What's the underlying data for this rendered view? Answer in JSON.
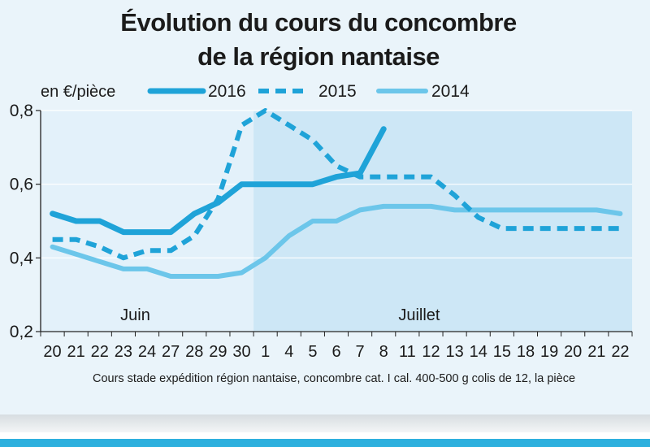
{
  "header": {
    "title_line1": "Évolution du cours du concombre",
    "title_line2": "de la région nantaise"
  },
  "colors": {
    "series_2016": "#1fa3d8",
    "series_2015": "#1fa3d8",
    "series_2014": "#6cc6ea",
    "panel_june": "#e3f1fa",
    "panel_july": "#cde7f6",
    "accent_rule": "#2db0de"
  },
  "chart_data": {
    "type": "line",
    "title": "Évolution du cours du concombre de la région nantaise",
    "ylabel": "en €/pièce",
    "ylim": [
      0.2,
      0.8
    ],
    "y_ticks": [
      0.2,
      0.4,
      0.6,
      0.8
    ],
    "y_tick_labels": [
      "0,2",
      "0,4",
      "0,6",
      "0,8"
    ],
    "categories": [
      "20",
      "21",
      "22",
      "23",
      "24",
      "27",
      "28",
      "29",
      "30",
      "1",
      "4",
      "5",
      "6",
      "7",
      "8",
      "11",
      "12",
      "13",
      "14",
      "15",
      "18",
      "19",
      "20",
      "21",
      "22"
    ],
    "month_labels": [
      {
        "label": "Juin",
        "center_index": 3.5
      },
      {
        "label": "Juillet",
        "center_index": 15.5
      }
    ],
    "series": [
      {
        "name": "2016",
        "style": "solid-thick",
        "values": [
          0.52,
          0.5,
          0.5,
          0.47,
          0.47,
          0.47,
          0.52,
          0.55,
          0.6,
          0.6,
          0.6,
          0.6,
          0.62,
          0.63,
          0.75,
          null,
          null,
          null,
          null,
          null,
          null,
          null,
          null,
          null,
          null
        ]
      },
      {
        "name": "2015",
        "style": "dashed",
        "values": [
          0.45,
          0.45,
          0.43,
          0.4,
          0.42,
          0.42,
          0.46,
          0.56,
          0.76,
          0.8,
          0.76,
          0.72,
          0.65,
          0.62,
          0.62,
          0.62,
          0.62,
          0.57,
          0.51,
          0.48,
          0.48,
          0.48,
          0.48,
          0.48,
          0.48
        ]
      },
      {
        "name": "2014",
        "style": "solid-light",
        "values": [
          0.43,
          0.41,
          0.39,
          0.37,
          0.37,
          0.35,
          0.35,
          0.35,
          0.36,
          0.4,
          0.46,
          0.5,
          0.5,
          0.53,
          0.54,
          0.54,
          0.54,
          0.53,
          0.53,
          0.53,
          0.53,
          0.53,
          0.53,
          0.53,
          0.52
        ]
      }
    ],
    "legend_placement": "top",
    "grid": true,
    "footnote": "Cours stade expédition région nantaise, concombre cat. I cal. 400-500 g colis de 12, la pièce"
  }
}
